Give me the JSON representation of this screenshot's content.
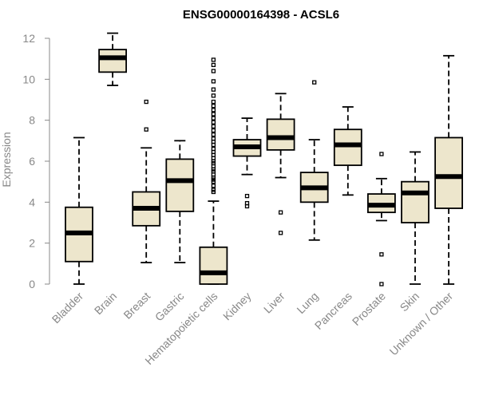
{
  "chart_data": {
    "type": "boxplot",
    "title": "ENSG00000164398 - ACSL6",
    "xlabel": "",
    "ylabel": "Expression",
    "ylim": [
      0,
      12
    ],
    "yticks": [
      0,
      2,
      4,
      6,
      8,
      10,
      12
    ],
    "grid": false,
    "legend": "none",
    "colors": {
      "box_fill": "#ede6cc",
      "stroke": "#000000",
      "axis": "#888888"
    },
    "categories": [
      "Bladder",
      "Brain",
      "Breast",
      "Gastric",
      "Hematopoietic cells",
      "Kidney",
      "Liver",
      "Lung",
      "Pancreas",
      "Prostate",
      "Skin",
      "Unknown / Other"
    ],
    "boxes": [
      {
        "category": "Bladder",
        "whisker_low": 0.0,
        "q1": 1.1,
        "median": 2.5,
        "q3": 3.75,
        "whisker_high": 7.15,
        "outliers": []
      },
      {
        "category": "Brain",
        "whisker_low": 9.7,
        "q1": 10.35,
        "median": 11.05,
        "q3": 11.45,
        "whisker_high": 12.25,
        "outliers": []
      },
      {
        "category": "Breast",
        "whisker_low": 1.05,
        "q1": 2.85,
        "median": 3.7,
        "q3": 4.5,
        "whisker_high": 6.65,
        "outliers": [
          7.55,
          8.9
        ]
      },
      {
        "category": "Gastric",
        "whisker_low": 1.05,
        "q1": 3.55,
        "median": 5.05,
        "q3": 6.1,
        "whisker_high": 7.0,
        "outliers": []
      },
      {
        "category": "Hematopoietic cells",
        "whisker_low": 0.0,
        "q1": 0.0,
        "median": 0.55,
        "q3": 1.8,
        "whisker_high": 4.05,
        "outliers": [
          4.5,
          4.6,
          4.8,
          5.0,
          5.1,
          5.2,
          5.35,
          5.5,
          5.6,
          5.75,
          5.9,
          6.0,
          6.15,
          6.3,
          6.45,
          6.6,
          6.8,
          6.95,
          7.1,
          7.3,
          7.5,
          7.7,
          7.9,
          8.1,
          8.3,
          8.5,
          8.7,
          8.9,
          9.2,
          9.5,
          9.9,
          10.4,
          10.7,
          10.95
        ]
      },
      {
        "category": "Kidney",
        "whisker_low": 5.35,
        "q1": 6.25,
        "median": 6.7,
        "q3": 7.05,
        "whisker_high": 8.1,
        "outliers": [
          3.8,
          3.95,
          4.3
        ]
      },
      {
        "category": "Liver",
        "whisker_low": 5.2,
        "q1": 6.55,
        "median": 7.15,
        "q3": 8.05,
        "whisker_high": 9.3,
        "outliers": [
          2.5,
          3.5
        ]
      },
      {
        "category": "Lung",
        "whisker_low": 2.15,
        "q1": 4.0,
        "median": 4.7,
        "q3": 5.45,
        "whisker_high": 7.05,
        "outliers": [
          9.85
        ]
      },
      {
        "category": "Pancreas",
        "whisker_low": 4.35,
        "q1": 5.8,
        "median": 6.8,
        "q3": 7.55,
        "whisker_high": 8.65,
        "outliers": []
      },
      {
        "category": "Prostate",
        "whisker_low": 3.1,
        "q1": 3.5,
        "median": 3.85,
        "q3": 4.4,
        "whisker_high": 5.15,
        "outliers": [
          0.0,
          1.45,
          6.35
        ]
      },
      {
        "category": "Skin",
        "whisker_low": 0.0,
        "q1": 3.0,
        "median": 4.45,
        "q3": 5.0,
        "whisker_high": 6.45,
        "outliers": []
      },
      {
        "category": "Unknown / Other",
        "whisker_low": 0.0,
        "q1": 3.7,
        "median": 5.25,
        "q3": 7.15,
        "whisker_high": 11.15,
        "outliers": []
      }
    ]
  }
}
